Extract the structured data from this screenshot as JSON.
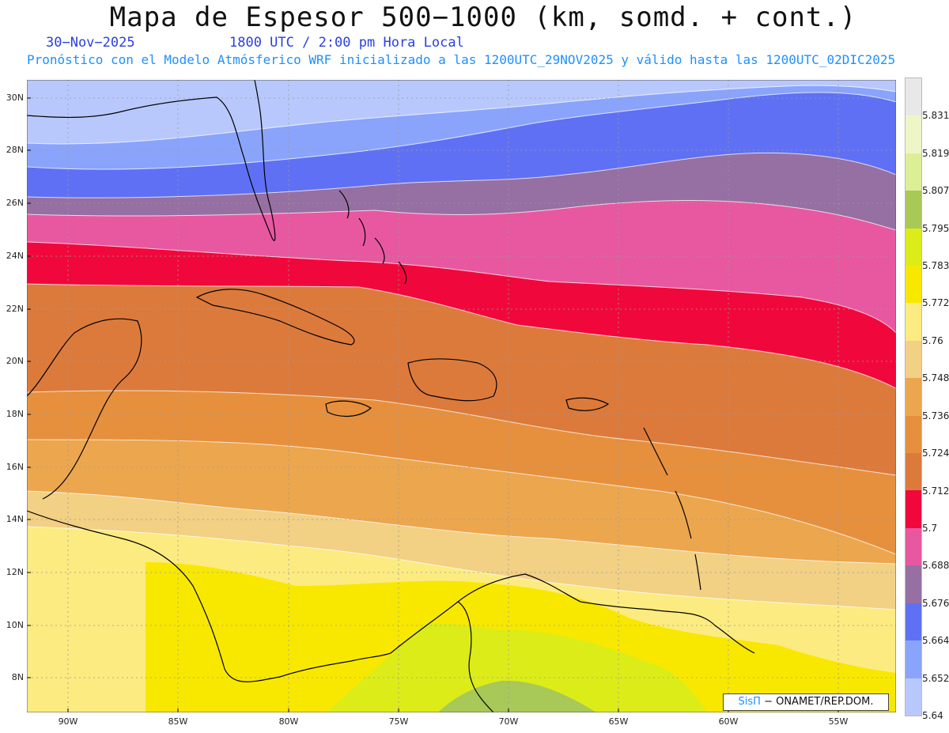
{
  "title": "Mapa de Espesor 500−1000 (km, somd. + cont.)",
  "date": "30−Nov−2025",
  "time": "1800 UTC / 2:00 pm Hora Local",
  "subtitle": "Pronóstico con el Modelo Atmósferico WRF inicializado a las 1200UTC_29NOV2025 y válido hasta las  1200UTC_02DIC2025",
  "lat_labels": [
    "30N",
    "28N",
    "26N",
    "24N",
    "22N",
    "20N",
    "18N",
    "16N",
    "14N",
    "12N",
    "10N",
    "8N"
  ],
  "lon_labels": [
    "90W",
    "85W",
    "80W",
    "75W",
    "70W",
    "65W",
    "60W",
    "55W"
  ],
  "colorbar": {
    "labels": [
      "5.831",
      "5.819",
      "5.807",
      "5.795",
      "5.783",
      "5.772",
      "5.76",
      "5.748",
      "5.736",
      "5.724",
      "5.712",
      "5.7",
      "5.688",
      "5.676",
      "5.664",
      "5.652",
      "5.64"
    ],
    "colors_top_to_bottom": [
      "#e8e8e8",
      "#eef6c8",
      "#dcef96",
      "#a8c858",
      "#dcec18",
      "#f8e800",
      "#fceb80",
      "#f2d084",
      "#eca64e",
      "#e6903e",
      "#dc7a3c",
      "#f0083c",
      "#e858a0",
      "#9670a2",
      "#6070f4",
      "#8aa4fc",
      "#b8c8fc"
    ]
  },
  "bands": {
    "b1": "#b8c8fc",
    "b2": "#8aa4fc",
    "b3": "#6070f4",
    "b4": "#9670a2",
    "b5": "#e858a0",
    "b6": "#f0083c",
    "b7": "#dc7a3c",
    "b8": "#e6903e",
    "b9": "#eca64e",
    "b10": "#f2d084",
    "b11": "#fceb80",
    "b12": "#f8e800",
    "b13": "#dcec18",
    "b14": "#a8c858"
  },
  "credit": {
    "brand": "SisΠ",
    "text": " − ONAMET/REP.DOM."
  }
}
